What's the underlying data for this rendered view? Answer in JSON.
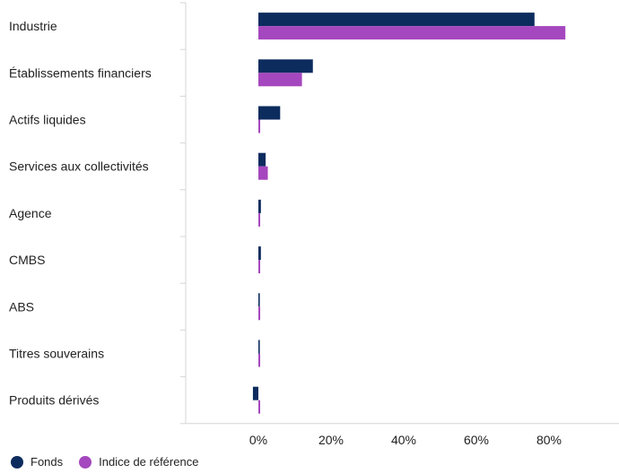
{
  "chart_data": {
    "type": "bar",
    "orientation": "horizontal",
    "categories": [
      "Industrie",
      "Établissements financiers",
      "Actifs liquides",
      "Services aux collectivités",
      "Agence",
      "CMBS",
      "ABS",
      "Titres souverains",
      "Produits dérivés"
    ],
    "series": [
      {
        "name": "Fonds",
        "color": "#0d2c5e",
        "values": [
          76,
          15,
          6,
          2,
          0.7,
          0.7,
          0,
          0,
          -1.5
        ]
      },
      {
        "name": "Indice de référence",
        "color": "#a547be",
        "values": [
          84.5,
          12,
          0.5,
          2.6,
          0.5,
          0.5,
          0.5,
          0.5,
          0.5
        ]
      }
    ],
    "xlim": [
      -20,
      100
    ],
    "xticks": [
      0,
      20,
      40,
      60,
      80
    ],
    "xtick_labels": [
      "0%",
      "20%",
      "40%",
      "60%",
      "80%"
    ],
    "title": "",
    "xlabel": "",
    "ylabel": "",
    "grid": false,
    "legend_position": "bottom-left"
  }
}
